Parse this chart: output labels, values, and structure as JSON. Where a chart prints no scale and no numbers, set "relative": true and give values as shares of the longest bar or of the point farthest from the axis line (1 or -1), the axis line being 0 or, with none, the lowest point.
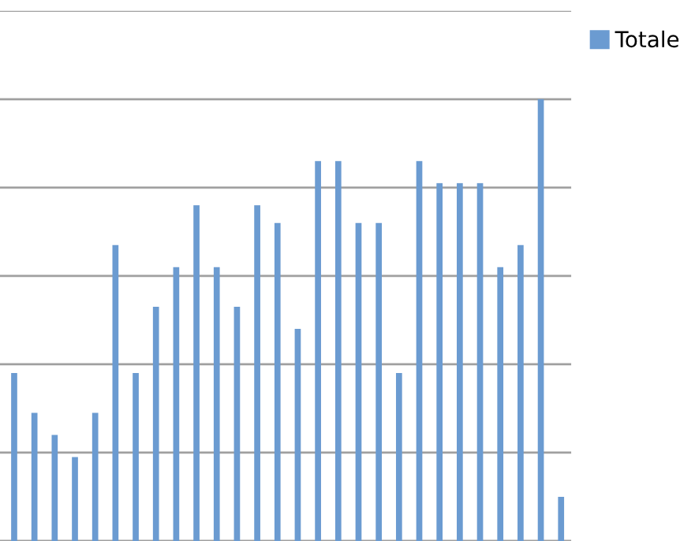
{
  "chart_data": {
    "type": "bar",
    "relative": true,
    "categories": [
      null,
      null,
      null,
      null,
      null,
      null,
      null,
      null,
      null,
      null,
      null,
      null,
      null,
      null,
      null,
      null,
      null,
      null,
      null,
      null,
      null,
      null,
      null,
      null,
      null,
      null,
      null,
      null
    ],
    "series": [
      {
        "name": "Totale",
        "color": "#6b9bd1",
        "values": [
          0.38,
          0.29,
          0.24,
          0.19,
          0.29,
          0.67,
          0.38,
          0.53,
          0.62,
          0.76,
          0.62,
          0.53,
          0.76,
          0.72,
          0.48,
          0.86,
          0.86,
          0.72,
          0.72,
          0.38,
          0.86,
          0.81,
          0.81,
          0.81,
          0.62,
          0.67,
          1,
          0.1
        ]
      }
    ],
    "grid": "y",
    "legend": "top right"
  }
}
